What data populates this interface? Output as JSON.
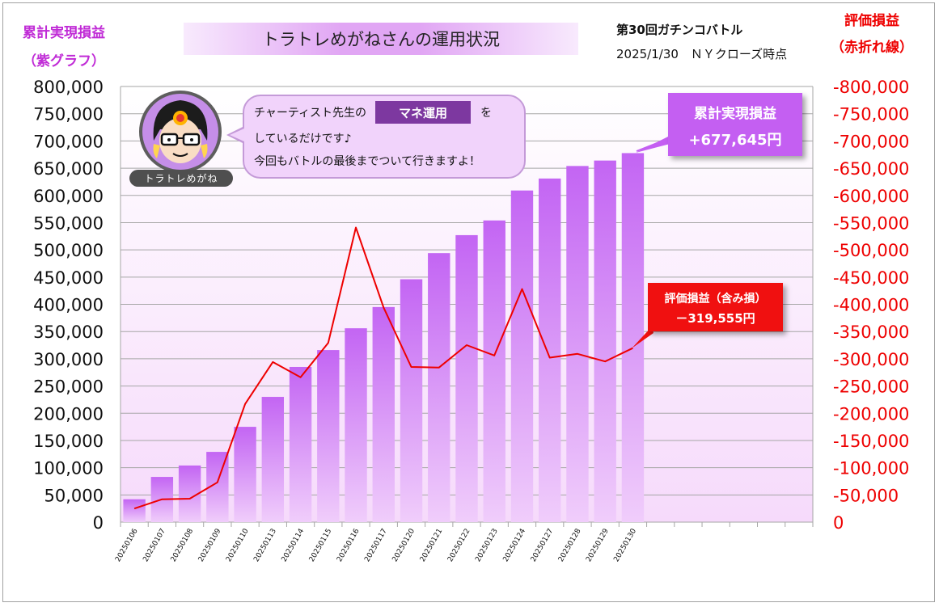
{
  "header": {
    "left_axis_title_line1": "累計実現損益",
    "left_axis_title_line2": "（紫グラフ）",
    "right_axis_title_line1": "評価損益",
    "right_axis_title_line2": "（赤折れ線）",
    "main_title": "トラトレめがねさんの運用状況",
    "battle_name": "第30回ガチンコバトル",
    "battle_date": "2025/1/30　ＮＹクローズ時点"
  },
  "bubble": {
    "line1": "チャーティスト先生の",
    "highlight": "マネ運用",
    "line1_end": "を",
    "line2": "しているだけです♪",
    "line3": "今回もバトルの最後までついて行きますよ！"
  },
  "avatar": {
    "name": "トラトレめがね"
  },
  "callouts": {
    "cumulative_label": "累計実現損益",
    "cumulative_value": "+677,645円",
    "eval_label": "評価損益（含み損）",
    "eval_value": "－319,555円"
  },
  "colors": {
    "bar_top": "#c365f3",
    "bar_bottom": "#f0cdfb",
    "line": "#ee0000",
    "left_title": "#c02bd6",
    "right_title": "#ee0000"
  },
  "chart_data": {
    "type": "bar",
    "categories": [
      "20250106",
      "20250107",
      "20250108",
      "20250109",
      "20250110",
      "20250113",
      "20250114",
      "20250115",
      "20250116",
      "20250117",
      "20250120",
      "20250121",
      "20250122",
      "20250123",
      "20250124",
      "20250127",
      "20250128",
      "20250129",
      "20250130"
    ],
    "series": [
      {
        "name": "累計実現損益",
        "type": "bar",
        "axis": "left",
        "values": [
          42000,
          83000,
          104000,
          129000,
          175000,
          230000,
          285000,
          316000,
          356000,
          395000,
          446000,
          494000,
          527000,
          554000,
          609000,
          631000,
          654000,
          664000,
          677645
        ]
      },
      {
        "name": "評価損益",
        "type": "line",
        "axis": "right",
        "values": [
          -25000,
          -42000,
          -43000,
          -73000,
          -217000,
          -294000,
          -266000,
          -329000,
          -541000,
          -394000,
          -285000,
          -284000,
          -325000,
          -306000,
          -428000,
          -302000,
          -309000,
          -295000,
          -319555
        ]
      }
    ],
    "y_left": {
      "min": 0,
      "max": 800000,
      "step": 50000,
      "tick_labels": [
        "0",
        "50,000",
        "100,000",
        "150,000",
        "200,000",
        "250,000",
        "300,000",
        "350,000",
        "400,000",
        "450,000",
        "500,000",
        "550,000",
        "600,000",
        "650,000",
        "700,000",
        "750,000",
        "800,000"
      ]
    },
    "y_right": {
      "min": 0,
      "max": -800000,
      "step": -50000,
      "tick_labels": [
        "0",
        "-50,000",
        "-100,000",
        "-150,000",
        "-200,000",
        "-250,000",
        "-300,000",
        "-350,000",
        "-400,000",
        "-450,000",
        "-500,000",
        "-550,000",
        "-600,000",
        "-650,000",
        "-700,000",
        "-750,000",
        "-800,000"
      ]
    },
    "grid": true,
    "total_slots": 25
  }
}
